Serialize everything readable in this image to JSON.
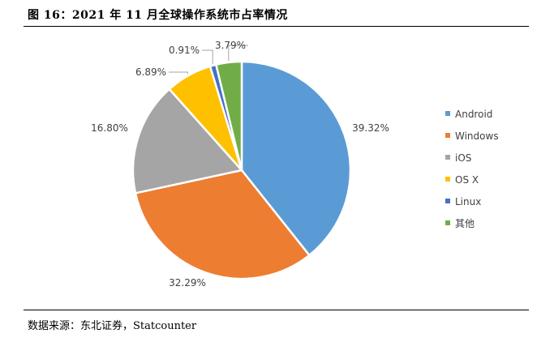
{
  "figure": {
    "title": "图 16：2021 年 11 月全球操作系统市占率情况",
    "source": "数据来源：东北证券，Statcounter"
  },
  "chart_data": {
    "type": "pie",
    "title": "图 16：2021 年 11 月全球操作系统市占率情况",
    "categories": [
      "Android",
      "Windows",
      "iOS",
      "OS X",
      "Linux",
      "其他"
    ],
    "values": [
      39.32,
      32.29,
      16.8,
      6.89,
      0.91,
      3.79
    ],
    "labels": [
      "39.32%",
      "32.29%",
      "16.80%",
      "6.89%",
      "0.91%",
      "3.79%"
    ],
    "colors": [
      "#5B9BD5",
      "#ED7D31",
      "#A5A5A5",
      "#FFC000",
      "#4472C4",
      "#70AD47"
    ],
    "start_angle_deg": 0,
    "direction": "clockwise",
    "legend_position": "right"
  }
}
